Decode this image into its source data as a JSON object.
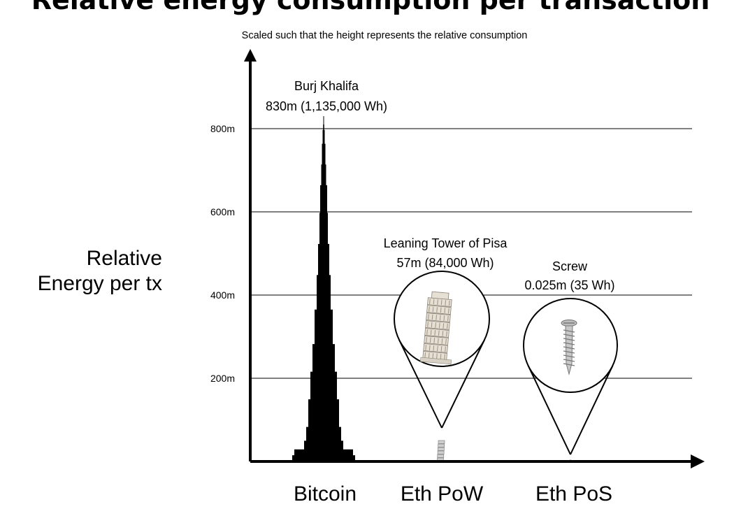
{
  "chart_data": {
    "type": "bar",
    "title": "Relative energy consumption per transaction",
    "subtitle": "Scaled such that the height represents the relative consumption",
    "ylabel_lines": [
      "Relative",
      "Energy per tx"
    ],
    "xlabel": "",
    "ylim": [
      0,
      800
    ],
    "yticks": [
      {
        "value": 200,
        "label": "200m"
      },
      {
        "value": 400,
        "label": "400m"
      },
      {
        "value": 600,
        "label": "600m"
      },
      {
        "value": 800,
        "label": "800m"
      }
    ],
    "grid": true,
    "categories": [
      "Bitcoin",
      "Eth PoW",
      "Eth PoS"
    ],
    "series": [
      {
        "values": [
          830,
          57,
          0.025
        ],
        "energy_wh": [
          1135000,
          84000,
          35
        ],
        "objects": [
          "Burj Khalifa",
          "Leaning Tower of Pisa",
          "Screw"
        ]
      }
    ],
    "annotations": [
      {
        "name": "Burj Khalifa",
        "value": "830m (1,135,000 Wh)"
      },
      {
        "name": "Leaning Tower of Pisa",
        "value": "57m (84,000 Wh)"
      },
      {
        "name": "Screw",
        "value": "0.025m (35 Wh)"
      }
    ]
  },
  "icons": [
    "burj-khalifa-icon",
    "pisa-tower-icon",
    "screw-icon"
  ]
}
